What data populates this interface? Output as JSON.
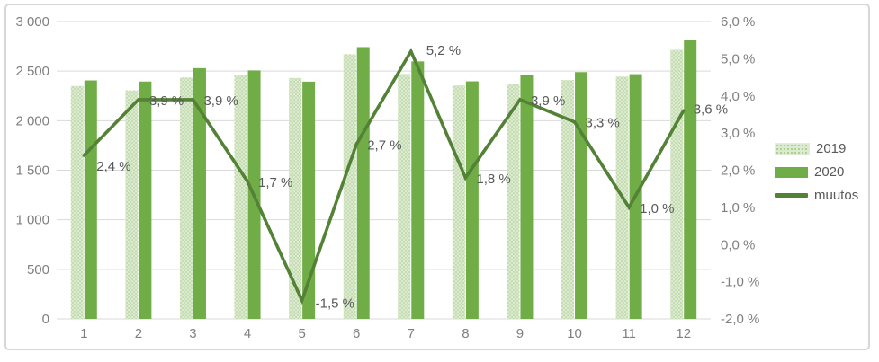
{
  "chart_data": {
    "type": "combo-bar-line",
    "categories": [
      "1",
      "2",
      "3",
      "4",
      "5",
      "6",
      "7",
      "8",
      "9",
      "10",
      "11",
      "12"
    ],
    "bar_series": [
      {
        "name": "2019",
        "values": [
          2350,
          2305,
          2435,
          2465,
          2430,
          2670,
          2470,
          2355,
          2370,
          2410,
          2445,
          2715
        ]
      },
      {
        "name": "2020",
        "values": [
          2406,
          2395,
          2530,
          2507,
          2394,
          2742,
          2598,
          2397,
          2462,
          2490,
          2469,
          2813
        ]
      }
    ],
    "line_series": {
      "name": "muutos",
      "values": [
        2.4,
        3.9,
        3.9,
        1.7,
        -1.5,
        2.7,
        5.2,
        1.8,
        3.9,
        3.3,
        1.0,
        3.6
      ],
      "labels": [
        "2,4 %",
        "3,9 %",
        "3,9 %",
        "1,7 %",
        "-1,5 %",
        "2,7 %",
        "5,2 %",
        "1,8 %",
        "3,9 %",
        "3,3 %",
        "1,0 %",
        "3,6 %"
      ]
    },
    "left_axis": {
      "min": 0,
      "max": 3000,
      "step": 500,
      "tick_labels": [
        "0",
        "500",
        "1 000",
        "1 500",
        "2 000",
        "2 500",
        "3 000"
      ]
    },
    "right_axis": {
      "min": -2,
      "max": 6,
      "step": 1,
      "tick_labels": [
        "-2,0 %",
        "-1,0 %",
        "0,0 %",
        "1,0 %",
        "2,0 %",
        "3,0 %",
        "4,0 %",
        "5,0 %",
        "6,0 %"
      ]
    },
    "grid": true,
    "legend_position": "right",
    "label_offsets": {
      "default": [
        12,
        6
      ],
      "0": [
        14,
        17
      ],
      "4": [
        15,
        8
      ],
      "6": [
        17,
        4
      ],
      "11": [
        11,
        3
      ]
    },
    "colors": {
      "bar_2019_base": "#dcead2",
      "bar_2019_dot": "#abcf8a",
      "bar_2020": "#70ad47",
      "line": "#538135",
      "grid": "#d9d9d9",
      "axis_text": "#7f7f7f",
      "data_label_text": "#595959"
    }
  },
  "legend": {
    "item_2019": "2019",
    "item_2020": "2020",
    "item_muutos": "muutos"
  }
}
